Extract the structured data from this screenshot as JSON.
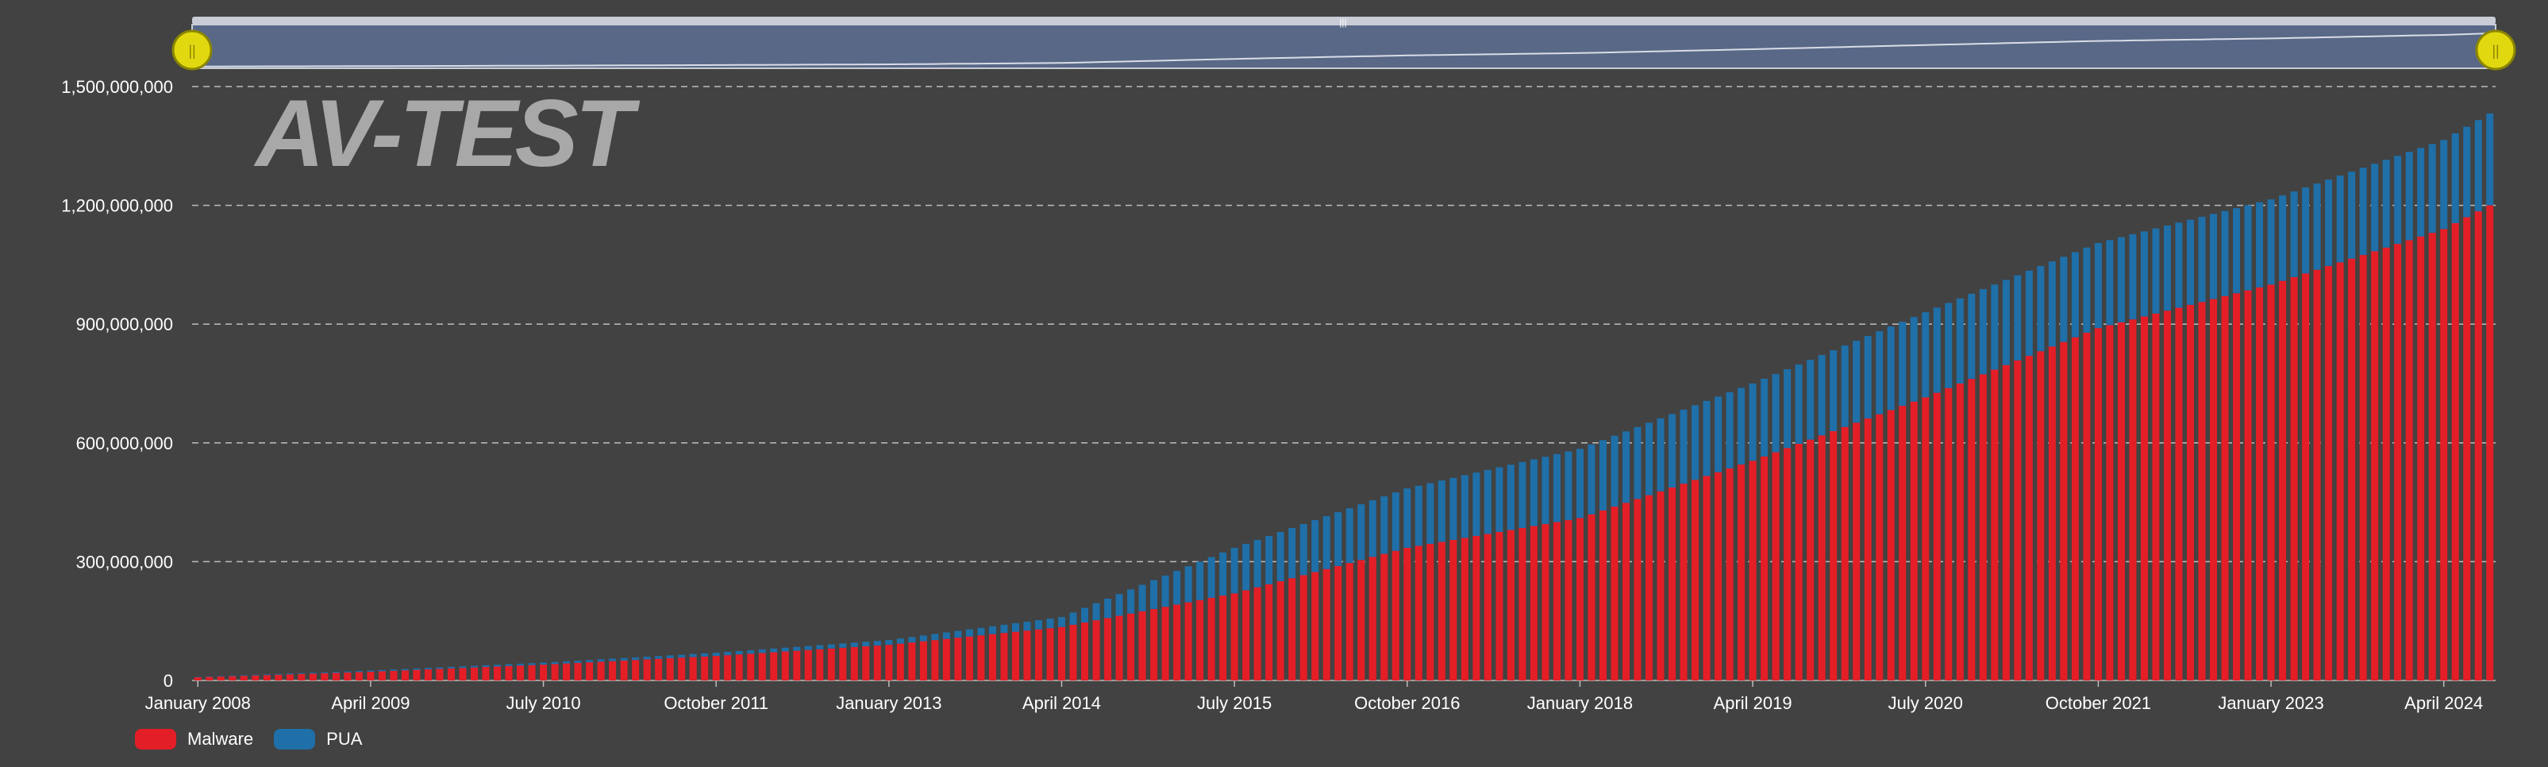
{
  "logo_text": "AV-TEST",
  "colors": {
    "background": "#424242",
    "malware": "#e41e26",
    "pua": "#1f6fa8",
    "grid": "#bdbdbd",
    "text": "#ffffff",
    "navigator_fill": "#5d6f93",
    "navigator_border": "#c8ccd6",
    "navigator_handle": "#e1d80f",
    "navigator_handle_border": "#8a8500"
  },
  "legend": [
    {
      "label": "Malware",
      "color": "#e41e26"
    },
    {
      "label": "PUA",
      "color": "#1f6fa8"
    }
  ],
  "chart_data": {
    "type": "bar",
    "stacked": true,
    "title": "",
    "xlabel": "",
    "ylabel": "",
    "ylim": [
      0,
      1500000000
    ],
    "y_ticks": [
      0,
      300000000,
      600000000,
      900000000,
      1200000000,
      1500000000
    ],
    "y_tick_labels": [
      "0",
      "300,000,000",
      "600,000,000",
      "900,000,000",
      "1,200,000,000",
      "1,500,000,000"
    ],
    "x_tick_labels": [
      "January 2008",
      "April 2009",
      "July 2010",
      "October 2011",
      "January 2013",
      "April 2014",
      "July 2015",
      "October 2016",
      "January 2018",
      "April 2019",
      "July 2020",
      "October 2021",
      "January 2023",
      "April 2024"
    ],
    "x_range": [
      "January 2008",
      "August 2024"
    ],
    "grid": true,
    "legend_position": "bottom-left",
    "interpolation": "linear between anchor months",
    "series": [
      {
        "name": "Malware",
        "anchors": [
          [
            "January 2008",
            8000000
          ],
          [
            "April 2009",
            22000000
          ],
          [
            "July 2010",
            40000000
          ],
          [
            "October 2011",
            62000000
          ],
          [
            "January 2013",
            90000000
          ],
          [
            "April 2014",
            135000000
          ],
          [
            "July 2015",
            220000000
          ],
          [
            "October 2016",
            335000000
          ],
          [
            "January 2018",
            410000000
          ],
          [
            "April 2019",
            555000000
          ],
          [
            "July 2020",
            715000000
          ],
          [
            "October 2021",
            890000000
          ],
          [
            "January 2023",
            1000000000
          ],
          [
            "April 2024",
            1140000000
          ],
          [
            "August 2024",
            1200000000
          ]
        ]
      },
      {
        "name": "PUA",
        "anchors": [
          [
            "January 2008",
            1000000
          ],
          [
            "April 2009",
            3000000
          ],
          [
            "July 2010",
            5000000
          ],
          [
            "October 2011",
            8000000
          ],
          [
            "January 2013",
            12000000
          ],
          [
            "April 2014",
            25000000
          ],
          [
            "July 2015",
            115000000
          ],
          [
            "October 2016",
            150000000
          ],
          [
            "January 2018",
            175000000
          ],
          [
            "April 2019",
            195000000
          ],
          [
            "July 2020",
            215000000
          ],
          [
            "October 2021",
            215000000
          ],
          [
            "January 2023",
            215000000
          ],
          [
            "April 2024",
            225000000
          ],
          [
            "August 2024",
            232000000
          ]
        ]
      }
    ]
  }
}
